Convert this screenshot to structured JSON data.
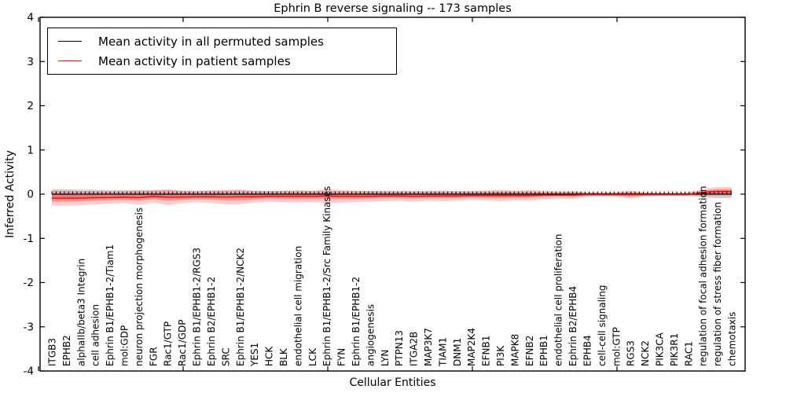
{
  "figure": {
    "title": "Ephrin B reverse signaling -- 173 samples",
    "xlabel": "Cellular Entities",
    "ylabel": "Inferred Activity"
  },
  "legend": {
    "entries": [
      {
        "label": "Mean activity in all permuted samples",
        "color": "#000000"
      },
      {
        "label": "Mean activity in patient samples",
        "color": "#ff0000"
      }
    ]
  },
  "chart_data": {
    "type": "line",
    "title": "Ephrin B reverse signaling -- 173 samples",
    "xlabel": "Cellular Entities",
    "ylabel": "Inferred Activity",
    "ylim": [
      -4,
      4
    ],
    "yticks": [
      4,
      3,
      2,
      1,
      0,
      -1,
      -2,
      -3,
      -4
    ],
    "grid": false,
    "legend_position": "upper left",
    "categories": [
      "ITGB3",
      "EPHB2",
      "alphaIIb/beta3 Integrin",
      "cell adhesion",
      "Ephrin B1/EPHB1-2/Tiam1",
      "mol:GDP",
      "neuron projection morphogenesis",
      "FGR",
      "Rac1/GTP",
      "Rac1/GDP",
      "Ephrin B1/EPHB1-2/RGS3",
      "Ephrin B2/EPHB1-2",
      "SRC",
      "Ephrin B1/EPHB1-2/NCK2",
      "YES1",
      "HCK",
      "BLK",
      "endothelial cell migration",
      "LCK",
      "Ephrin B1/EPHB1-2/Src Family Kinases",
      "FYN",
      "Ephrin B1/EPHB1-2",
      "angiogenesis",
      "LYN",
      "PTPN13",
      "ITGA2B",
      "MAP3K7",
      "TIAM1",
      "DNM1",
      "MAP2K4",
      "EFNB1",
      "PI3K",
      "MAPK8",
      "EFNB2",
      "EPHB1",
      "endothelial cell proliferation",
      "Ephrin B2/EPHB4",
      "EPHB4",
      "cell-cell signaling",
      "mol:GTP",
      "RGS3",
      "NCK2",
      "PIK3CA",
      "PIK3R1",
      "RAC1",
      "regulation of focal adhesion formation",
      "regulation of stress fiber formation",
      "chemotaxis"
    ],
    "series": [
      {
        "name": "Mean activity in all permuted samples",
        "color": "#000000",
        "values": [
          0,
          0,
          0,
          0,
          0,
          0,
          0,
          0,
          0,
          0,
          0,
          0,
          0,
          0,
          0,
          0,
          0,
          0,
          0,
          0,
          0,
          0,
          0,
          0,
          0,
          0,
          0,
          0,
          0,
          0,
          0,
          0,
          0,
          0,
          0,
          0,
          0,
          0,
          0,
          0,
          0,
          0,
          0,
          0,
          0,
          0,
          0,
          0
        ]
      },
      {
        "name": "Mean activity in patient samples",
        "color": "#ff0000",
        "values": [
          -0.09,
          -0.09,
          -0.09,
          -0.08,
          -0.08,
          -0.07,
          -0.08,
          -0.05,
          -0.07,
          -0.07,
          -0.06,
          -0.06,
          -0.07,
          -0.06,
          -0.06,
          -0.05,
          -0.05,
          -0.05,
          -0.05,
          -0.04,
          -0.05,
          -0.05,
          -0.05,
          -0.04,
          -0.04,
          -0.05,
          -0.04,
          -0.04,
          -0.04,
          -0.03,
          -0.03,
          -0.03,
          -0.03,
          -0.03,
          -0.02,
          -0.02,
          -0.02,
          -0.01,
          -0.01,
          -0.01,
          -0.01,
          -0.01,
          -0.01,
          -0.01,
          -0.01,
          0.04,
          0.06,
          0.06
        ]
      }
    ],
    "bands": [
      {
        "name": "permuted samples std band",
        "center": "permuted",
        "color": "rgba(130,130,130,0.35)",
        "half_widths": [
          0.11,
          0.11,
          0.1,
          0.1,
          0.09,
          0.09,
          0.09,
          0.08,
          0.09,
          0.08,
          0.08,
          0.08,
          0.08,
          0.08,
          0.08,
          0.07,
          0.07,
          0.07,
          0.07,
          0.07,
          0.07,
          0.07,
          0.07,
          0.06,
          0.06,
          0.06,
          0.06,
          0.06,
          0.06,
          0.06,
          0.06,
          0.06,
          0.06,
          0.06,
          0.05,
          0.05,
          0.05,
          0.04,
          0.04,
          0.04,
          0.05,
          0.04,
          0.04,
          0.04,
          0.04,
          0.07,
          0.09,
          0.09
        ]
      },
      {
        "name": "patient samples outer band",
        "center": "patient",
        "color": "rgba(255,25,25,0.22)",
        "half_widths": [
          0.17,
          0.17,
          0.16,
          0.15,
          0.14,
          0.13,
          0.16,
          0.14,
          0.18,
          0.14,
          0.12,
          0.14,
          0.16,
          0.17,
          0.13,
          0.12,
          0.13,
          0.14,
          0.13,
          0.16,
          0.14,
          0.13,
          0.12,
          0.12,
          0.11,
          0.12,
          0.11,
          0.12,
          0.11,
          0.1,
          0.11,
          0.13,
          0.11,
          0.12,
          0.1,
          0.08,
          0.09,
          0.05,
          0.04,
          0.05,
          0.09,
          0.04,
          0.03,
          0.03,
          0.03,
          0.08,
          0.1,
          0.1
        ]
      },
      {
        "name": "patient samples inner band",
        "center": "patient",
        "color": "rgba(255,25,25,0.33)",
        "half_widths": [
          0.08,
          0.08,
          0.07,
          0.07,
          0.06,
          0.06,
          0.07,
          0.06,
          0.08,
          0.06,
          0.05,
          0.06,
          0.07,
          0.08,
          0.06,
          0.05,
          0.06,
          0.06,
          0.06,
          0.07,
          0.06,
          0.06,
          0.05,
          0.05,
          0.05,
          0.05,
          0.05,
          0.05,
          0.05,
          0.04,
          0.05,
          0.06,
          0.05,
          0.05,
          0.04,
          0.03,
          0.04,
          0.02,
          0.02,
          0.02,
          0.04,
          0.02,
          0.01,
          0.01,
          0.01,
          0.04,
          0.05,
          0.05
        ]
      }
    ]
  }
}
